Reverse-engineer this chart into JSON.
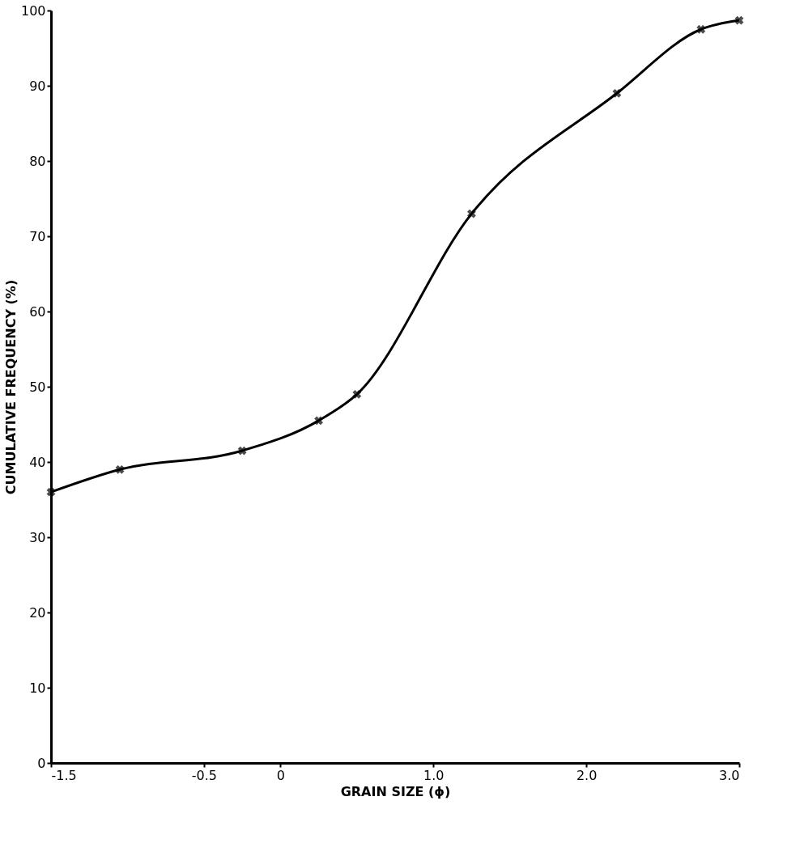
{
  "chart_data": {
    "type": "line",
    "xlabel": "GRAIN SIZE (ϕ)",
    "ylabel": "CUMULATIVE FREQUENCY (%)",
    "x": [
      -1.5,
      -1.05,
      -0.25,
      0.25,
      0.5,
      1.25,
      2.2,
      2.75,
      3.0
    ],
    "series": [
      {
        "color": "#000000",
        "values": [
          36,
          39,
          41.5,
          45.5,
          49,
          73,
          89,
          97.5,
          98.7
        ]
      }
    ],
    "xlim": [
      -1.5,
      3.0
    ],
    "xticks": [
      -1.5,
      -0.5,
      0,
      {
        "value": 1,
        "label": "1.0"
      },
      {
        "value": 2,
        "label": "2.0"
      },
      {
        "value": 3,
        "label": "3.0"
      }
    ],
    "ylim": [
      0,
      100
    ],
    "yticks": [
      0,
      10,
      20,
      30,
      40,
      50,
      60,
      70,
      80,
      90,
      100
    ],
    "grid": false,
    "marker": "cross",
    "line_style": "solid"
  }
}
